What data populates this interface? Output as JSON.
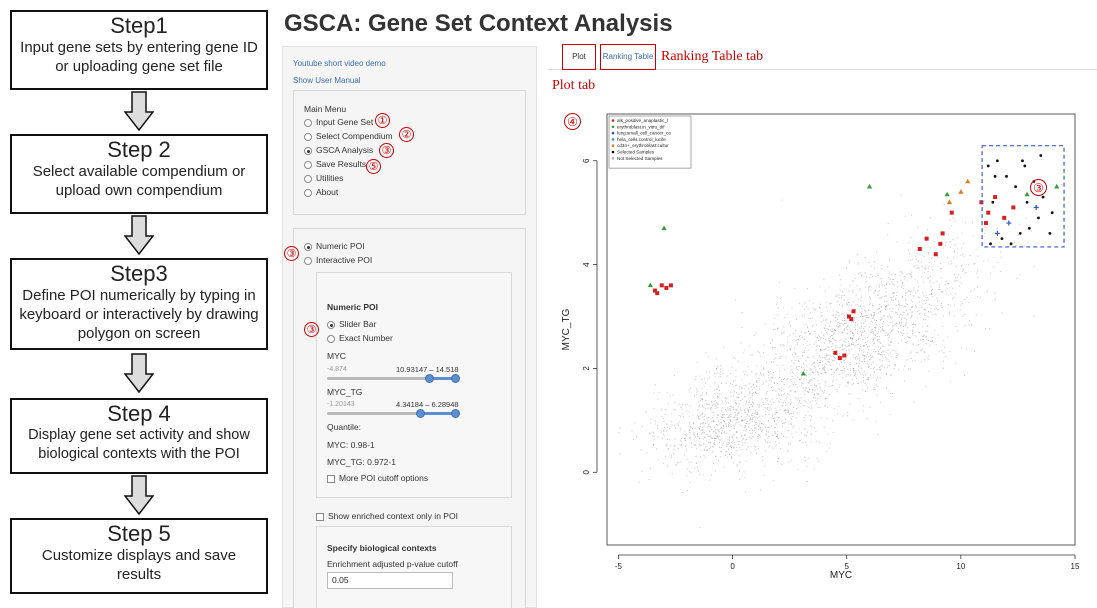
{
  "steps": [
    {
      "title": "Step1",
      "desc": "Input gene sets by entering gene ID or uploading gene set file"
    },
    {
      "title": "Step 2",
      "desc": "Select available compendium or upload own compendium"
    },
    {
      "title": "Step3",
      "desc": "Define POI numerically by typing in keyboard or interactively by drawing polygon on screen"
    },
    {
      "title": "Step 4",
      "desc": "Display gene set activity and show biological contexts with the POI"
    },
    {
      "title": "Step 5",
      "desc": "Customize displays and save results"
    }
  ],
  "app": {
    "title": "GSCA: Gene Set Context Analysis"
  },
  "sidebar": {
    "links": [
      "Youtube short video demo",
      "Show User Manual"
    ],
    "main_menu": {
      "title": "Main Menu",
      "items": [
        "Input Gene Set",
        "Select Compendium",
        "GSCA Analysis",
        "Save Results",
        "Utilities",
        "About"
      ],
      "selected": "GSCA Analysis"
    },
    "poi_mode": {
      "options": [
        "Numeric POI",
        "Interactive POI"
      ],
      "selected": "Numeric POI"
    },
    "numeric_poi": {
      "title": "Numeric POI",
      "modes": [
        "Slider Bar",
        "Exact Number"
      ],
      "selected": "Slider Bar",
      "sliders": [
        {
          "name": "MYC",
          "min_label": "-4.874",
          "range_label": "10.93147 – 14.518",
          "low": 0.8,
          "high": 1.0
        },
        {
          "name": "MYC_TG",
          "min_label": "-1.20143",
          "range_label": "4.34184 – 6.28948",
          "low": 0.73,
          "high": 1.0
        }
      ],
      "quantile_label": "Quantile:",
      "quantiles": [
        "MYC: 0.98-1",
        "MYC_TG: 0.972-1"
      ],
      "more_cutoff": "More POI cutoff options"
    },
    "show_enriched": "Show enriched context only in POI",
    "bio_contexts": {
      "title": "Specify biological contexts",
      "cutoff_label": "Enrichment adjusted p-value cutoff",
      "cutoff_value": "0.05"
    }
  },
  "tabs": [
    "Plot",
    "Ranking Table"
  ],
  "annotations": {
    "plot_tab": "Plot tab",
    "ranking_tab": "Ranking Table tab"
  },
  "markers": {
    "m1": "①",
    "m2": "②",
    "m3": "③",
    "m4": "④",
    "m5": "⑤"
  },
  "chart_data": {
    "type": "scatter",
    "xlabel": "MYC",
    "ylabel": "MYC_TG",
    "xlim": [
      -5.5,
      15
    ],
    "ylim": [
      -1.4,
      6.9
    ],
    "xticks": [
      "-5",
      "0",
      "5",
      "10",
      "15"
    ],
    "yticks": [
      "0",
      "2",
      "4",
      "6"
    ],
    "legend_position": "top-left",
    "legend": [
      {
        "name": "alk_positive_anaplastic_l",
        "color": "#d42020",
        "shape": "square"
      },
      {
        "name": "erythroblast.in_vitro_dif",
        "color": "#3a9a3a",
        "shape": "triangle"
      },
      {
        "name": "lung:small_cell_cancer_ce",
        "color": "#2a55c8",
        "shape": "plus"
      },
      {
        "name": "hela_cells:control_lucife",
        "color": "#2aa0a0",
        "shape": "x"
      },
      {
        "name": "cd34+_erythroblast:cultur",
        "color": "#e07a20",
        "shape": "triangle"
      },
      {
        "name": "Selected Samples",
        "color": "#111111",
        "shape": "dot"
      },
      {
        "name": "Not Selected Samples",
        "color": "#aaaaaa",
        "shape": "dot"
      }
    ],
    "poi_box": {
      "x": [
        10.93,
        14.52
      ],
      "y": [
        4.34,
        6.29
      ]
    },
    "series": [
      {
        "name": "alk_positive_anaplastic_l",
        "color": "#d42020",
        "points": [
          [
            -3.4,
            3.5
          ],
          [
            -3.1,
            3.6
          ],
          [
            -2.9,
            3.55
          ],
          [
            -2.7,
            3.6
          ],
          [
            -3.3,
            3.45
          ],
          [
            4.5,
            2.3
          ],
          [
            4.7,
            2.2
          ],
          [
            4.9,
            2.25
          ],
          [
            5.1,
            3.0
          ],
          [
            5.3,
            3.1
          ],
          [
            5.2,
            2.95
          ],
          [
            8.2,
            4.3
          ],
          [
            8.5,
            4.5
          ],
          [
            8.9,
            4.2
          ],
          [
            9.1,
            4.4
          ],
          [
            9.2,
            4.6
          ],
          [
            10.9,
            5.2
          ],
          [
            11.2,
            5.0
          ],
          [
            11.5,
            5.3
          ],
          [
            11.9,
            4.9
          ],
          [
            12.3,
            5.1
          ],
          [
            11.1,
            4.8
          ],
          [
            9.6,
            5.0
          ]
        ]
      },
      {
        "name": "erythroblast.in_vitro_dif",
        "color": "#3a9a3a",
        "points": [
          [
            -3.6,
            3.6
          ],
          [
            -3.0,
            4.7
          ],
          [
            6.0,
            5.5
          ],
          [
            9.4,
            5.35
          ],
          [
            12.9,
            5.35
          ],
          [
            14.2,
            5.5
          ],
          [
            3.1,
            1.9
          ]
        ]
      },
      {
        "name": "lung:small_cell_cancer_ce",
        "color": "#2a55c8",
        "points": [
          [
            13.3,
            5.1
          ],
          [
            12.1,
            4.8
          ],
          [
            11.6,
            4.6
          ]
        ]
      },
      {
        "name": "cd34+_erythroblast:cultur",
        "color": "#e07a20",
        "points": [
          [
            9.5,
            5.2
          ],
          [
            10.0,
            5.4
          ],
          [
            10.3,
            5.6
          ]
        ]
      },
      {
        "name": "Selected Samples",
        "color": "#111111",
        "points": [
          [
            11.2,
            5.9
          ],
          [
            11.6,
            6.0
          ],
          [
            12.0,
            5.7
          ],
          [
            12.4,
            5.5
          ],
          [
            12.8,
            5.9
          ],
          [
            13.2,
            5.6
          ],
          [
            13.6,
            5.3
          ],
          [
            11.4,
            5.2
          ],
          [
            11.8,
            4.5
          ],
          [
            12.2,
            4.4
          ],
          [
            12.6,
            4.6
          ],
          [
            13.0,
            4.7
          ],
          [
            13.4,
            4.9
          ],
          [
            13.9,
            4.6
          ],
          [
            11.5,
            5.7
          ],
          [
            12.7,
            6.0
          ],
          [
            13.5,
            6.1
          ],
          [
            11.3,
            4.4
          ],
          [
            12.9,
            5.2
          ],
          [
            14.0,
            5.0
          ]
        ]
      }
    ]
  }
}
